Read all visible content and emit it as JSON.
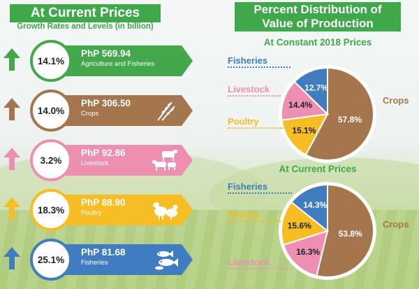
{
  "left": {
    "title": "At Current Prices",
    "subtitle": "Growth Rates and Levels (in billion)",
    "rows": [
      {
        "growth": "14.1%",
        "value": "PhP 569.94",
        "label": "Agriculture and Fisheries",
        "color": "#43a84b",
        "icon": "none"
      },
      {
        "growth": "14.0%",
        "value": "PhP 306.50",
        "label": "Crops",
        "color": "#a5754d",
        "icon": "wheat-icon"
      },
      {
        "growth": "3.2%",
        "value": "PhP 92.86",
        "label": "Livestock",
        "color": "#ee8fb1",
        "icon": "livestock-icon"
      },
      {
        "growth": "18.3%",
        "value": "PhP 88.90",
        "label": "Poultry",
        "color": "#f6bd24",
        "icon": "poultry-icon"
      },
      {
        "growth": "25.1%",
        "value": "PhP 81.68",
        "label": "Fisheries",
        "color": "#3f7dc0",
        "icon": "fish-icon"
      }
    ]
  },
  "right": {
    "title_line1": "Percent Distribution of",
    "title_line2": "Value of Production"
  },
  "chart_data": [
    {
      "type": "pie",
      "title": "At Constant 2018 Prices",
      "categories": [
        "Crops",
        "Poultry",
        "Livestock",
        "Fisheries"
      ],
      "values": [
        57.8,
        15.1,
        14.4,
        12.7
      ],
      "value_labels": [
        "57.8%",
        "15.1%",
        "14.4%",
        "12.7%"
      ],
      "colors": [
        "#a5754d",
        "#f6bd24",
        "#ee8fb1",
        "#3f7dc0"
      ]
    },
    {
      "type": "pie",
      "title": "At Current Prices",
      "categories": [
        "Crops",
        "Livestock",
        "Poultry",
        "Fisheries"
      ],
      "values": [
        53.8,
        16.3,
        15.6,
        14.3
      ],
      "value_labels": [
        "53.8%",
        "16.3%",
        "15.6%",
        "14.3%"
      ],
      "colors": [
        "#a5754d",
        "#ee8fb1",
        "#f6bd24",
        "#3f7dc0"
      ]
    }
  ]
}
